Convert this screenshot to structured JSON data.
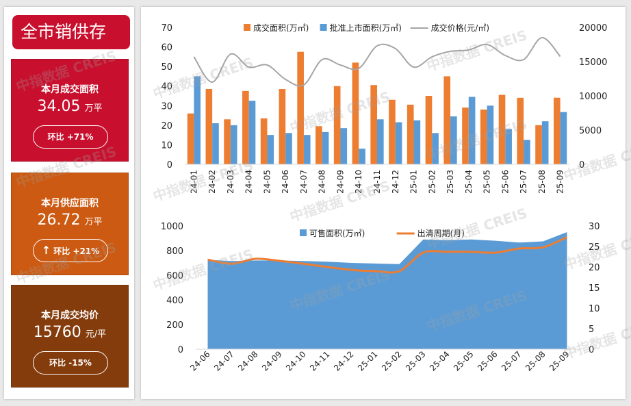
{
  "sidebar": {
    "title": "全市销供存",
    "cards": [
      {
        "label": "本月成交面积",
        "value": "34.05",
        "unit": "万平",
        "change": "环比 +71%",
        "color": "#c8102e"
      },
      {
        "label": "本月供应面积",
        "value": "26.72",
        "unit": "万平",
        "change": "环比 +21%",
        "color": "#cc5a12"
      },
      {
        "label": "本月成交均价",
        "value": "15760",
        "unit": "元/平",
        "change": "环比 -15%",
        "color": "#843c0c"
      }
    ]
  },
  "watermark": "中指数据 CREIS",
  "chart_data": [
    {
      "type": "bar",
      "categories": [
        "24-01",
        "24-02",
        "24-03",
        "24-04",
        "24-05",
        "24-06",
        "24-07",
        "24-08",
        "24-09",
        "24-10",
        "24-11",
        "24-12",
        "25-01",
        "25-02",
        "25-03",
        "25-04",
        "25-05",
        "25-06",
        "25-07",
        "25-08",
        "25-09"
      ],
      "series": [
        {
          "name": "成交面积(万㎡)",
          "type": "bar",
          "axis": "left",
          "color": "#ed7d31",
          "values": [
            26,
            38.5,
            23,
            37.5,
            23.5,
            38.5,
            57.5,
            19.5,
            40,
            52,
            40.5,
            33,
            30.5,
            35,
            45,
            29,
            28,
            35.5,
            34,
            20,
            34.05
          ]
        },
        {
          "name": "批准上市面积(万㎡)",
          "type": "bar",
          "axis": "left",
          "color": "#5b9bd5",
          "values": [
            45,
            21,
            20,
            32.5,
            15,
            16,
            15,
            16.5,
            18.5,
            8,
            23,
            21.5,
            22.5,
            16,
            24.5,
            34.5,
            30,
            18,
            12.5,
            22,
            26.72
          ]
        },
        {
          "name": "成交价格(元/㎡)",
          "type": "line",
          "axis": "right",
          "color": "#a5a5a5",
          "values": [
            15700,
            12000,
            16100,
            14200,
            14500,
            12400,
            11600,
            15300,
            14500,
            14000,
            17300,
            16900,
            14200,
            15700,
            16500,
            16700,
            17500,
            15900,
            15300,
            18500,
            15760
          ]
        }
      ],
      "ylim_left": [
        0,
        70
      ],
      "yticks_left": [
        0,
        10,
        20,
        30,
        40,
        50,
        60,
        70
      ],
      "ylim_right": [
        0,
        20000
      ],
      "yticks_right": [
        0,
        5000,
        10000,
        15000,
        20000
      ],
      "legend": "top"
    },
    {
      "type": "area",
      "categories": [
        "24-06",
        "24-07",
        "24-08",
        "24-09",
        "24-10",
        "24-11",
        "24-12",
        "25-01",
        "25-02",
        "25-03",
        "25-04",
        "25-05",
        "25-06",
        "25-07",
        "25-08",
        "25-09"
      ],
      "series": [
        {
          "name": "可售面积(万㎡)",
          "type": "area",
          "axis": "left",
          "color": "#5b9bd5",
          "values": [
            725,
            715,
            720,
            720,
            715,
            710,
            700,
            695,
            690,
            890,
            885,
            890,
            880,
            865,
            875,
            950
          ]
        },
        {
          "name": "出清周期(月)",
          "type": "line",
          "axis": "right",
          "color": "#ed7d31",
          "values": [
            21.8,
            20.8,
            22,
            21.5,
            20.8,
            20,
            19.3,
            19,
            19,
            23.5,
            23.7,
            23.7,
            23.5,
            24.5,
            24.8,
            27.3
          ]
        }
      ],
      "ylim_left": [
        0,
        1000
      ],
      "yticks_left": [
        0,
        200,
        400,
        600,
        800,
        1000
      ],
      "ylim_right": [
        0,
        30
      ],
      "yticks_right": [
        0,
        5,
        10,
        15,
        20,
        25,
        30
      ],
      "legend": "top"
    }
  ]
}
